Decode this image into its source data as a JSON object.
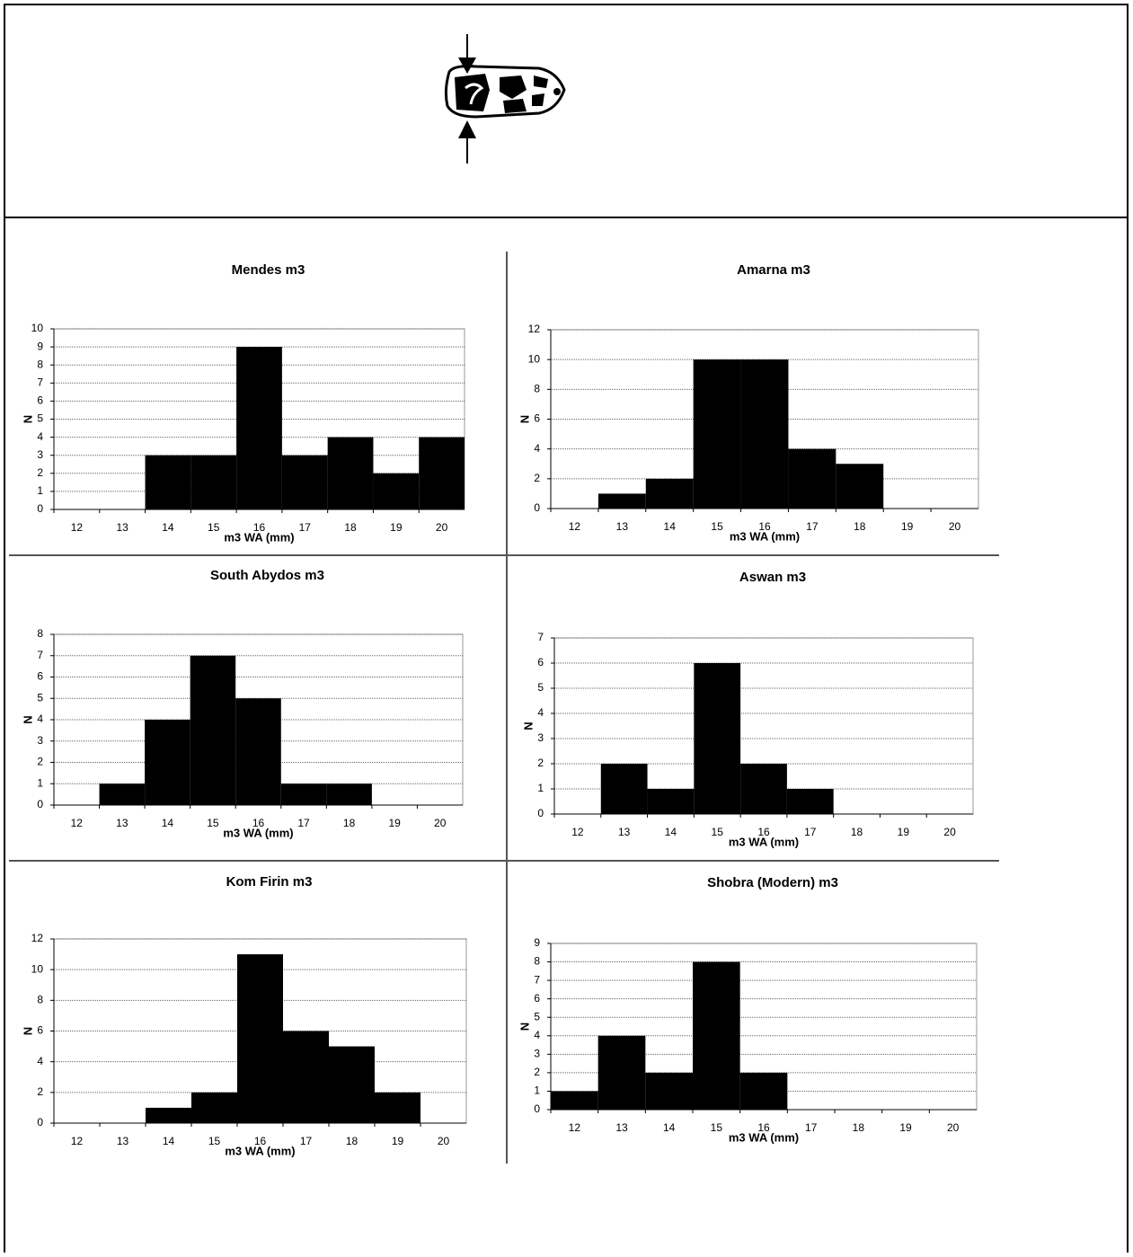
{
  "chart_data": [
    {
      "type": "bar",
      "title": "Mendes m3",
      "x_label": "m3 WA (mm)",
      "y_label": "N",
      "categories": [
        12,
        13,
        14,
        15,
        16,
        17,
        18,
        19,
        20
      ],
      "values": [
        0,
        0,
        3,
        3,
        9,
        3,
        4,
        2,
        4
      ],
      "color": "#000000",
      "ylim": [
        0,
        10
      ],
      "yticks": [
        0,
        1,
        2,
        3,
        4,
        5,
        6,
        7,
        8,
        9,
        10
      ],
      "grid": true
    },
    {
      "type": "bar",
      "title": "Amarna m3",
      "x_label": "m3 WA (mm)",
      "y_label": "N",
      "categories": [
        12,
        13,
        14,
        15,
        16,
        17,
        18,
        19,
        20
      ],
      "values": [
        0,
        1,
        2,
        10,
        10,
        4,
        3,
        0,
        0
      ],
      "color": "#000000",
      "ylim": [
        0,
        12
      ],
      "yticks": [
        0,
        2,
        4,
        6,
        8,
        10,
        12
      ],
      "grid": true
    },
    {
      "type": "bar",
      "title": "South Abydos m3",
      "x_label": "m3 WA (mm)",
      "y_label": "N",
      "categories": [
        12,
        13,
        14,
        15,
        16,
        17,
        18,
        19,
        20
      ],
      "values": [
        0,
        1,
        4,
        7,
        5,
        1,
        1,
        0,
        0
      ],
      "color": "#000000",
      "ylim": [
        0,
        8
      ],
      "yticks": [
        0,
        1,
        2,
        3,
        4,
        5,
        6,
        7,
        8
      ],
      "grid": true
    },
    {
      "type": "bar",
      "title": "Aswan m3",
      "x_label": "m3 WA (mm)",
      "y_label": "N",
      "categories": [
        12,
        13,
        14,
        15,
        16,
        17,
        18,
        19,
        20
      ],
      "values": [
        0,
        2,
        1,
        6,
        2,
        1,
        0,
        0,
        0
      ],
      "color": "#000000",
      "ylim": [
        0,
        7
      ],
      "yticks": [
        0,
        1,
        2,
        3,
        4,
        5,
        6,
        7
      ],
      "grid": true
    },
    {
      "type": "bar",
      "title": "Kom Firin m3",
      "x_label": "m3 WA (mm)",
      "y_label": "N",
      "categories": [
        12,
        13,
        14,
        15,
        16,
        17,
        18,
        19,
        20
      ],
      "values": [
        0,
        0,
        1,
        2,
        11,
        6,
        5,
        2,
        0
      ],
      "color": "#000000",
      "ylim": [
        0,
        12
      ],
      "yticks": [
        0,
        2,
        4,
        6,
        8,
        10,
        12
      ],
      "grid": true
    },
    {
      "type": "bar",
      "title": "Shobra (Modern) m3",
      "x_label": "m3 WA (mm)",
      "y_label": "N",
      "categories": [
        12,
        13,
        14,
        15,
        16,
        17,
        18,
        19,
        20
      ],
      "values": [
        1,
        4,
        2,
        8,
        2,
        0,
        0,
        0,
        0
      ],
      "color": "#000000",
      "ylim": [
        0,
        9
      ],
      "yticks": [
        0,
        1,
        2,
        3,
        4,
        5,
        6,
        7,
        8,
        9
      ],
      "grid": true
    }
  ]
}
